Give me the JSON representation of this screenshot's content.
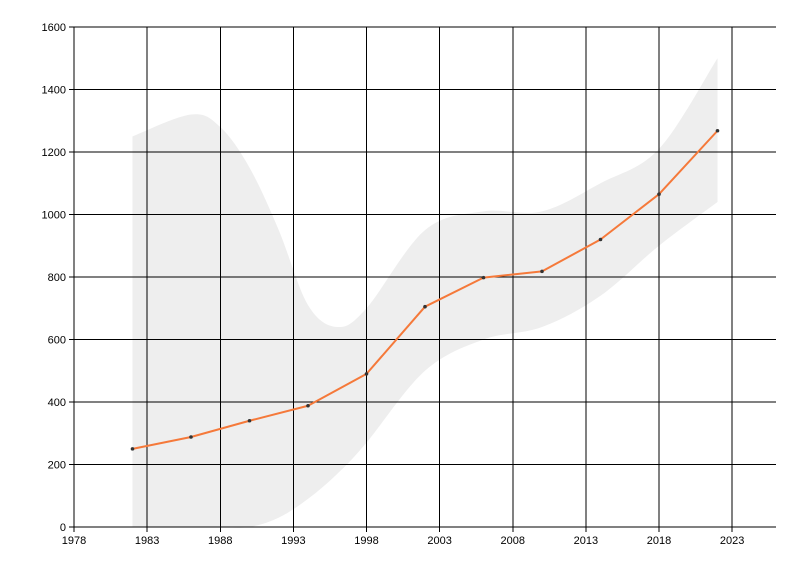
{
  "chart_data": {
    "type": "line",
    "title": "",
    "xlabel": "",
    "ylabel": "",
    "xlim": [
      1978,
      2026
    ],
    "ylim": [
      0,
      1600
    ],
    "x_ticks": [
      1978,
      1983,
      1988,
      1993,
      1998,
      2003,
      2008,
      2013,
      2018,
      2023
    ],
    "y_ticks": [
      0,
      200,
      400,
      600,
      800,
      1000,
      1200,
      1400,
      1600
    ],
    "grid": true,
    "legend": "none",
    "series": [
      {
        "x": [
          1982,
          1986,
          1990,
          1994,
          1998,
          2002,
          2006,
          2010,
          2014,
          2018,
          2022
        ],
        "values": [
          250,
          288,
          340,
          388,
          490,
          705,
          798,
          818,
          920,
          1065,
          1268
        ],
        "color": "#f5793a",
        "marker_color": "#333333"
      }
    ],
    "band": {
      "x": [
        1982,
        1986,
        1988,
        1990,
        1992,
        1994,
        1996,
        1998,
        2002,
        2006,
        2010,
        2014,
        2018,
        2022
      ],
      "lower": [
        0,
        0,
        0,
        0,
        30,
        90,
        170,
        270,
        500,
        600,
        640,
        740,
        900,
        1040
      ],
      "upper": [
        1250,
        1320,
        1280,
        1150,
        950,
        710,
        640,
        700,
        950,
        1010,
        1010,
        1100,
        1210,
        1500
      ],
      "color": "#eeeeee"
    }
  }
}
